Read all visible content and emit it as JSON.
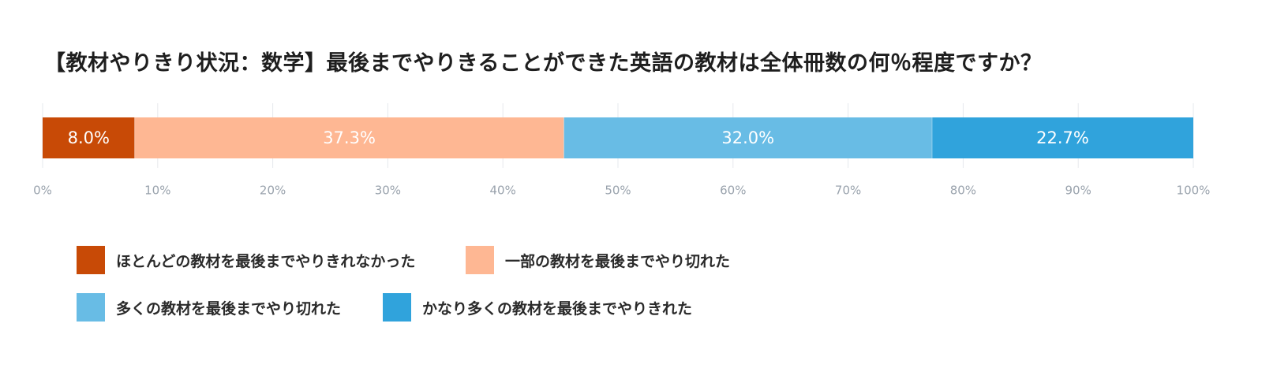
{
  "chart_data": {
    "type": "bar",
    "orientation": "horizontal",
    "stacked": true,
    "title": "【教材やりきり状況：数学】最後までやりきることができた英語の教材は全体冊数の何％程度ですか？",
    "xlim": [
      0,
      100
    ],
    "x_ticks": [
      "0%",
      "10%",
      "20%",
      "30%",
      "40%",
      "50%",
      "60%",
      "70%",
      "80%",
      "90%",
      "100%"
    ],
    "grid": true,
    "legend_position": "bottom",
    "series": [
      {
        "name": "ほとんどの教材を最後までやりきれなかった",
        "value": 8.0,
        "label": "8.0%",
        "color": "#c84a06"
      },
      {
        "name": "一部の教材を最後までやり切れた",
        "value": 37.3,
        "label": "37.3%",
        "color": "#feb793"
      },
      {
        "name": "多くの教材を最後までやり切れた",
        "value": 32.0,
        "label": "32.0%",
        "color": "#68bce5"
      },
      {
        "name": "かなり多くの教材を最後までやりきれた",
        "value": 22.7,
        "label": "22.7%",
        "color": "#30a3dc"
      }
    ]
  }
}
